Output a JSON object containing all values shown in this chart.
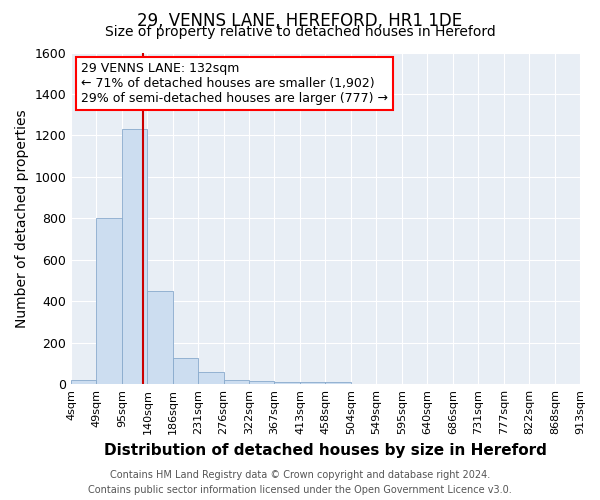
{
  "title": "29, VENNS LANE, HEREFORD, HR1 1DE",
  "subtitle": "Size of property relative to detached houses in Hereford",
  "xlabel": "Distribution of detached houses by size in Hereford",
  "ylabel": "Number of detached properties",
  "bin_edges": [
    4,
    49,
    95,
    140,
    186,
    231,
    276,
    322,
    367,
    413,
    458,
    504,
    549,
    595,
    640,
    686,
    731,
    777,
    822,
    868,
    913
  ],
  "bin_labels": [
    "4sqm",
    "49sqm",
    "95sqm",
    "140sqm",
    "186sqm",
    "231sqm",
    "276sqm",
    "322sqm",
    "367sqm",
    "413sqm",
    "458sqm",
    "504sqm",
    "549sqm",
    "595sqm",
    "640sqm",
    "686sqm",
    "731sqm",
    "777sqm",
    "822sqm",
    "868sqm",
    "913sqm"
  ],
  "bar_heights": [
    20,
    800,
    1230,
    450,
    125,
    58,
    22,
    15,
    10,
    10,
    10,
    0,
    0,
    0,
    0,
    0,
    0,
    0,
    0,
    0
  ],
  "bar_color": "#ccddf0",
  "bar_edgecolor": "#88aacc",
  "vline_x": 132,
  "vline_color": "#cc0000",
  "ylim": [
    0,
    1600
  ],
  "yticks": [
    0,
    200,
    400,
    600,
    800,
    1000,
    1200,
    1400,
    1600
  ],
  "annotation_text": "29 VENNS LANE: 132sqm\n← 71% of detached houses are smaller (1,902)\n29% of semi-detached houses are larger (777) →",
  "footer_line1": "Contains HM Land Registry data © Crown copyright and database right 2024.",
  "footer_line2": "Contains public sector information licensed under the Open Government Licence v3.0.",
  "bg_color": "#ffffff",
  "plot_bg_color": "#e8eef5",
  "grid_color": "#ffffff",
  "title_fontsize": 12,
  "subtitle_fontsize": 10,
  "label_fontsize": 10,
  "tick_fontsize": 8,
  "annotation_fontsize": 9,
  "footer_fontsize": 7
}
